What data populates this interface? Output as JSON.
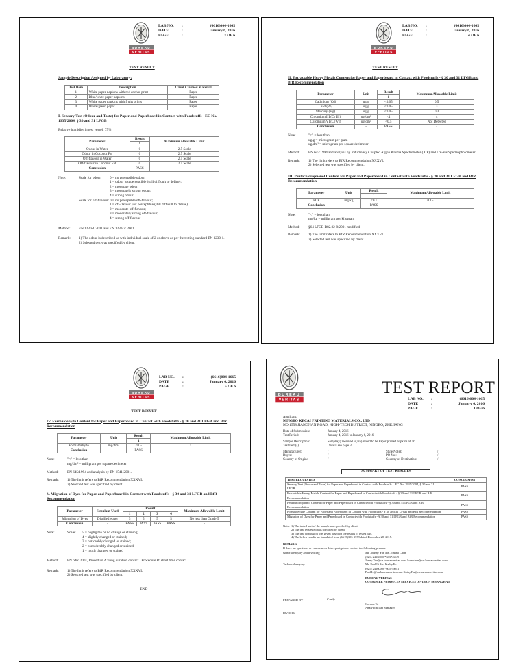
{
  "logo": {
    "text_top": "BUREAU",
    "text_bottom": "VERITAS",
    "year": "1828",
    "colors": {
      "band_gray": "#7a7a7a",
      "band_red": "#c8202f"
    }
  },
  "header_labels": {
    "lab_no": "LAB NO.",
    "date": "DATE",
    "page": "PAGE",
    "colon": ":"
  },
  "lab_no": "(6616)004-1665",
  "date": "January 6, 2016",
  "pages": {
    "p3": {
      "page": "3 OF 6",
      "title": "TEST RESULT",
      "sample_heading": "Sample Description Assigned by Laboratory:",
      "sample_table": {
        "header": [
          "Test Item",
          "Description",
          "Client Claimed Material"
        ],
        "rows": [
          [
            "1",
            "White paper napkins with red anchor print",
            "Paper"
          ],
          [
            "2",
            "Blue/white paper napkins",
            "Paper"
          ],
          [
            "3",
            "White paper napkins with fruits prints",
            "Paper"
          ],
          [
            "4",
            "White/green paper",
            "Paper"
          ]
        ]
      },
      "sec1_heading": "I. Sensory Test (Odour and Taste) for Paper and Paperboard in Contact with Foodstuffs - EC No. 1935/2004, § 30 and 31 LFGB",
      "humidity": "Relative humidity in test vessel: 75%",
      "sensory_table": {
        "h_param": "Parameter",
        "h_result": "Result",
        "h_sub": "1",
        "h_limit": "Maximum Allowable Limit",
        "rows": [
          [
            "Odour in Water",
            "0",
            "2.5 Scale"
          ],
          [
            "Odour in Coconut Fat",
            "0",
            "2.5 Scale"
          ],
          [
            "Off-flavour in Water",
            "0",
            "2.5 Scale"
          ],
          [
            "Off-flavour in Coconut Fat",
            "0",
            "2.5 Scale"
          ]
        ],
        "conclusion": [
          "Conclusion",
          "PASS",
          "-"
        ]
      },
      "note_label": "Note:",
      "odour_label": "Scale for odour:",
      "odour_scale": [
        "0 = no perceptible odour;",
        "1 = odour just perceptible (still difficult to define);",
        "2 = moderate odour;",
        "3 = moderately strong odour;",
        "4 = strong odour"
      ],
      "flavour_label": "Scale for off-flavour:",
      "flavour_scale": [
        "0 = no perceptible off-flavour;",
        "1 = off-flavour just perceptible (still difficult to define);",
        "2 = moderate off-flavour;",
        "3 = moderately strong off-flavour;",
        "4 = strong off-flavour"
      ],
      "method_label": "Method:",
      "method": "EN 1230-1:2001 and EN 1230-2: 2001",
      "remark_label": "Remark:",
      "remarks": [
        "1) The odour is described as with individual scale of 2 or above as per the testing standard EN 1230-1.",
        "2) Selected test was specified by client."
      ]
    },
    "p4": {
      "page": "4 OF 6",
      "title": "TEST RESULT",
      "sec2_heading": "II. Extractable Heavy Metals Content for Paper and Paperboard in Contact with Foodstuffs - § 30 and 31 LFGB and BfR Recommendation",
      "metals_table": {
        "header": [
          "Parameter",
          "Unit",
          "Result",
          "Maximum Allowable Limit"
        ],
        "sub": "1",
        "rows": [
          [
            "Cadmium (Cd)",
            "ug/g",
            "<0.05",
            "0.5"
          ],
          [
            "Lead (Pb)",
            "ug/g",
            "<0.05",
            "3"
          ],
          [
            "Mercury (Hg)",
            "ug/g",
            "<0.05",
            "0.3"
          ],
          [
            "Chromium III (Cr III)",
            "ug/dm²",
            "<1",
            "4"
          ],
          [
            "Chromium VI (Cr VI)",
            "ug/dm²",
            "<0.5",
            "Not Detected"
          ]
        ],
        "conclusion": [
          "Conclusion",
          "-",
          "PASS",
          "-"
        ]
      },
      "note_label": "Note:",
      "notes2": [
        "\"<\" = less than",
        "ug/g = microgram per gram",
        "ug/dm² = microgram per square decimeter"
      ],
      "method_label": "Method:",
      "method2": "EN 645:1994 and analysis by Inductively Coupled Argon Plasma Spectrometer (ICP) and UV-Vis Spectrophotometer.",
      "remark_label": "Remark:",
      "remarks2": [
        "1) The limit refers to BfR Recommendation XXXVI.",
        "2) Selected test was specified by client."
      ],
      "sec3_heading": "III. Pentachlorophenol Content for Paper and Paperboard in Contact with Foodstuffs - § 30 and 31 LFGB and BfR Recommendation",
      "pcp_table": {
        "header": [
          "Parameter",
          "Unit",
          "Result",
          "Maximum Allowable Limit"
        ],
        "sub": "1",
        "rows": [
          [
            "PCP",
            "mg/kg",
            "<0.1",
            "0.15"
          ]
        ],
        "conclusion": [
          "Conclusion",
          "-",
          "PASS",
          "-"
        ]
      },
      "notes3": [
        "\"<\" = less than",
        "mg/kg = milligram per kilogram"
      ],
      "method3": "§64 LFGB B82.02-8:2001 modified.",
      "remarks3": [
        "1) The limit refers to BfR Recommendation XXXVI.",
        "2) Selected test was specified by client."
      ]
    },
    "p5": {
      "page": "5 OF 6",
      "title": "TEST RESULT",
      "sec4_heading": "IV. Formaldehyde Content for Paper and Paperboard in Contact with Foodstuffs - § 30 and 31 LFGB and BfR Recommendation",
      "form_table": {
        "header": [
          "Parameter",
          "Unit",
          "Result",
          "Maximum Allowable Limit"
        ],
        "sub": "1",
        "rows": [
          [
            "Formaldehyde",
            "mg/dm²",
            "<0.5",
            "1"
          ]
        ],
        "conclusion": [
          "Conclusion",
          "-",
          "PASS",
          "-"
        ]
      },
      "note_label": "Note:",
      "notes4": [
        "\"<\" = less than",
        "mg/dm² = milligram per square decimeter"
      ],
      "method_label": "Method:",
      "method4": "EN 645:1994 and analysis by EN 1541:2001.",
      "remark_label": "Remark:",
      "remarks4": [
        "1) The limit refers to BfR Recommendation XXXVI.",
        "2) Selected test was specified by client."
      ],
      "sec5_heading": "V. Migration of Dyes for Paper and Paperboard in Contact with Foodstuffs - § 30 and 31 LFGB and BfR Recommendation",
      "dye_table": {
        "header": [
          "Parameter",
          "Simulant Used",
          "Result",
          "Maximum Allowable Limit"
        ],
        "sub": [
          "1",
          "2",
          "3",
          "4"
        ],
        "row": [
          "Migration of Dyes",
          "Distilled water",
          "5",
          "5",
          "5",
          "5",
          "No less than Grade 5"
        ],
        "conclusion": [
          "Conclusion",
          "-",
          "PASS",
          "PASS",
          "PASS",
          "PASS",
          "-"
        ]
      },
      "scale_label": "Scale:",
      "scale5": [
        "5 = negligible or no change or staining;",
        "4 = slightly changed or stained;",
        "3 = noticeably changed or stained;",
        "2 = considerably changed or stained;",
        "1 = much changed or stained"
      ],
      "method5": "EN 646: 2001, Procedure A: long duration contact / Procedure B: short time contact",
      "remarks5": [
        "1) The limit refers to BfR Recommendation XXXVI.",
        "2) Selected test was specified by client."
      ],
      "end": "END"
    },
    "p1": {
      "page": "1 OF 6",
      "title": "TEST REPORT",
      "applicant_label": "Applicant:",
      "applicant": "NINGBO KECAI PRINTING MATERIALS CO., LTD",
      "address": "NO.1558 JIANGNAN ROAD, HIGH-TECH DISTRICT, NINGBO, ZHEJIANG",
      "fields": [
        [
          "Date of Submission:",
          "January 4, 2016"
        ],
        [
          "Test Period:",
          "January 4, 2016 to January 6, 2016"
        ]
      ],
      "fields2": [
        [
          "Sample Description:",
          "Sample(s) received is(are) stated to be Paper printed napkins of 16"
        ],
        [
          "Test Item(s):",
          "Details see page 3"
        ]
      ],
      "fields3": [
        [
          "Manufacturer:",
          "/",
          "Style No(s):",
          "/"
        ],
        [
          "Buyer:",
          "/",
          "PO No.:",
          "/"
        ],
        [
          "Country of Origin:",
          "/",
          "Country of Destination:",
          "/"
        ]
      ],
      "summary_title": "SUMMARY OF TEST RESULTS",
      "summary_header": [
        "TEST REQUESTED",
        "CONCLUSION"
      ],
      "summary_rows": [
        [
          "Sensory Test (Odour and Taste) for Paper and Paperboard in Contact with Foodstuffs – EC No. 1935/2004, § 30 and 31 LFGB",
          "PASS"
        ],
        [
          "Extractable Heavy Metals Content for Paper and Paperboard in Contact with Foodstuffs - § 30 and 31 LFGB and BfR Recommendation",
          "PASS"
        ],
        [
          "Pentachlorophenol Content for Paper and Paperboard in Contact with Foodstuffs - § 30 and 31 LFGB and BfR Recommendation",
          "PASS"
        ],
        [
          "Formaldehyde Content for Paper and Paperboard in Contact with Foodstuffs - § 30 and 31 LFGB and BfR Recommendation",
          "PASS"
        ],
        [
          "Migration of Dyes for Paper and Paperboard in Contact with Foodstuffs - § 30 and 31 LFGB and BfR Recommendation",
          "PASS"
        ]
      ],
      "note_label": "Note:",
      "notes": [
        "1) The tested part of the sample was specified by client.",
        "2) The test requested was specified by client.",
        "3) The test conclusion was given based on the results of tested part.",
        "4) The below results are translated from (6615)355-1579 dated December 28, 2015."
      ],
      "remark_heading": "REMARK",
      "remark_text": "If there are questions or concerns on this report, please contact the following persons:",
      "general_label": "General enquiry and invoicing",
      "general_contact": [
        "Mr. Johnny Yue Ms. Joanna Chen",
        "(021) 24160000*6037/6049",
        "Jonny.Yue@cn.bureauveritas.com  Joan.chen@cn.bureauveritas.com"
      ],
      "technical_label": "Technical enquiry",
      "technical_contact": [
        "Mr. Paul Li Ms. Kathy Fu",
        "(021) 24160000*6057/6041",
        "Paul.Li@cn.bureauveritas.com  Kathy.Fu@cn.bureauveritas.com"
      ],
      "company": "BUREAU VERITAS",
      "division": "CONSUMER PRODUCTS SERVICES DIVISION (SHANGHAI)",
      "prepared_label": "PREPARED BY :",
      "prepared_by": "Candy",
      "signer": "Gordon Yu",
      "signer_title": "Analytical Lab Manager",
      "footer": "RW/2016"
    }
  }
}
